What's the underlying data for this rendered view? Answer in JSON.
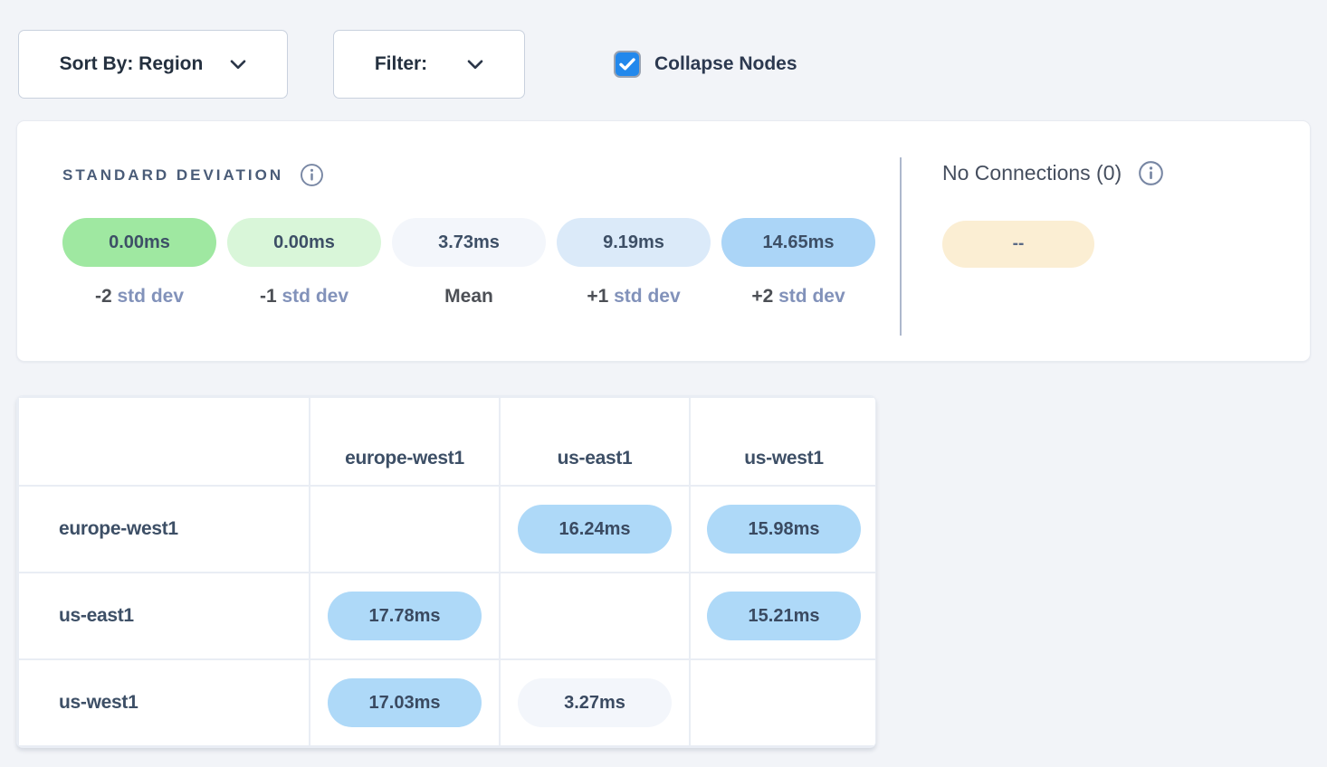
{
  "toolbar": {
    "sort_by": {
      "label": "Sort By: Region"
    },
    "filter": {
      "label": "Filter:"
    },
    "collapse_nodes": {
      "label": "Collapse Nodes",
      "checked": true,
      "accent_color": "#2288ec"
    }
  },
  "legend": {
    "title": "STANDARD DEVIATION",
    "items": [
      {
        "value": "0.00ms",
        "label_strong": "-2",
        "label_muted": "std dev",
        "color": "#9fe8a1"
      },
      {
        "value": "0.00ms",
        "label_strong": "-1",
        "label_muted": "std dev",
        "color": "#d9f6d9"
      },
      {
        "value": "3.73ms",
        "label_strong": "Mean",
        "label_muted": "",
        "color": "#f3f6fb"
      },
      {
        "value": "9.19ms",
        "label_strong": "+1",
        "label_muted": "std dev",
        "color": "#dbeaf9"
      },
      {
        "value": "14.65ms",
        "label_strong": "+2",
        "label_muted": "std dev",
        "color": "#abd5f7"
      }
    ]
  },
  "no_connections": {
    "title": "No Connections (0)",
    "pill_label": "--",
    "pill_color": "#fbeed3"
  },
  "matrix": {
    "columns": [
      "europe-west1",
      "us-east1",
      "us-west1"
    ],
    "rows": [
      {
        "label": "europe-west1",
        "cells": [
          null,
          {
            "value": "16.24ms",
            "color": "#aed9f8"
          },
          {
            "value": "15.98ms",
            "color": "#aed9f8"
          }
        ]
      },
      {
        "label": "us-east1",
        "cells": [
          {
            "value": "17.78ms",
            "color": "#aed9f8"
          },
          null,
          {
            "value": "15.21ms",
            "color": "#aed9f8"
          }
        ]
      },
      {
        "label": "us-west1",
        "cells": [
          {
            "value": "17.03ms",
            "color": "#aed9f8"
          },
          {
            "value": "3.27ms",
            "color": "#f3f6fb"
          },
          null
        ]
      }
    ]
  }
}
